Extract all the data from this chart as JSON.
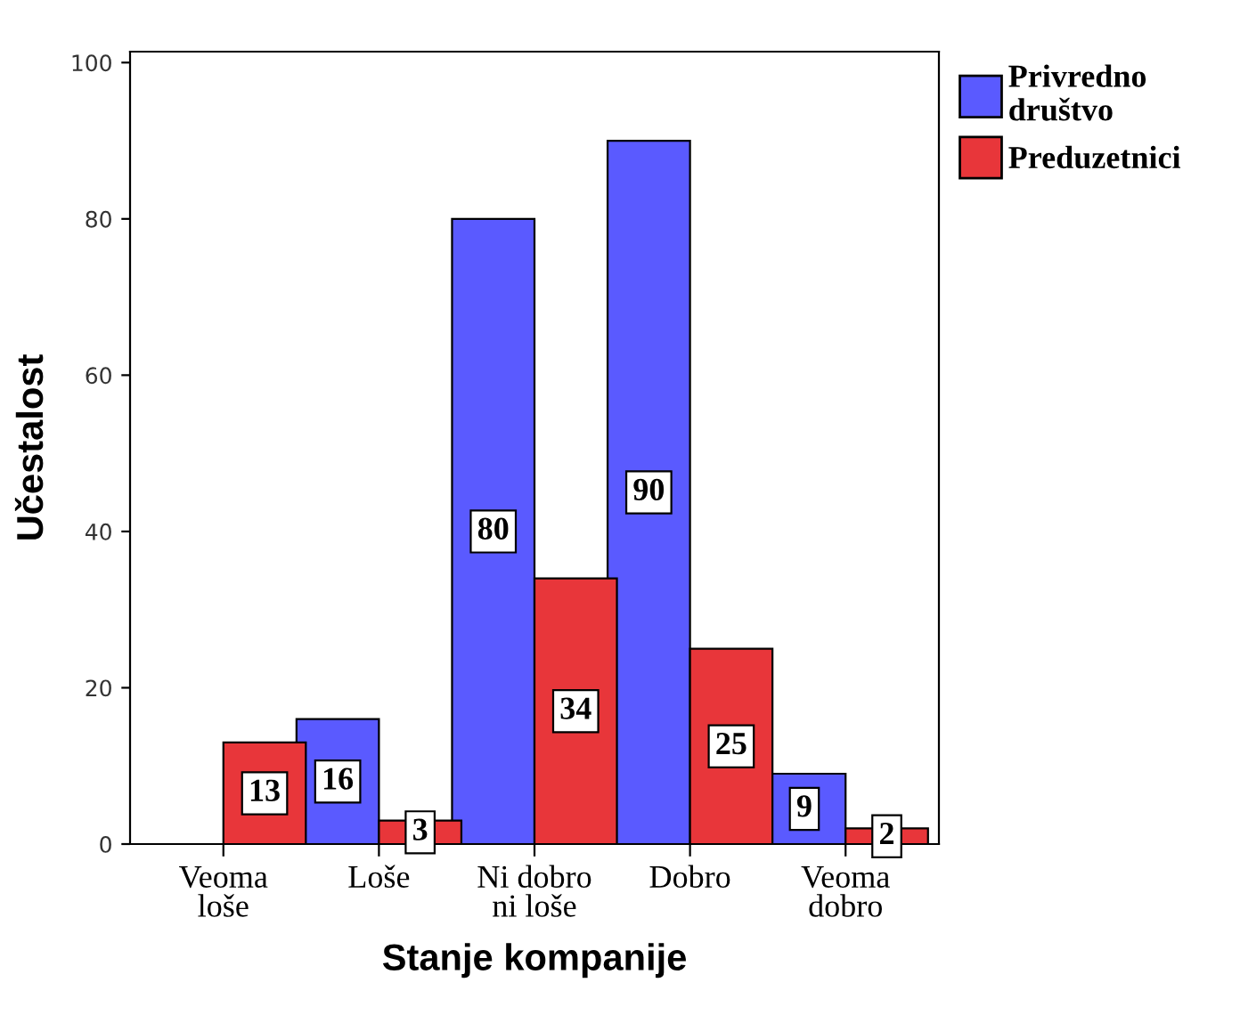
{
  "chart_data": {
    "type": "bar",
    "xlabel": "Stanje kompanije",
    "ylabel": "Učestalost",
    "categories": [
      "Veoma\nloše",
      "Loše",
      "Ni dobro\nni loše",
      "Dobro",
      "Veoma\ndobro"
    ],
    "series": [
      {
        "name": "Privredno\ndruštvo",
        "color": "#5a5aff",
        "values": [
          null,
          16,
          80,
          90,
          9
        ]
      },
      {
        "name": "Preduzetnici",
        "color": "#e8363a",
        "values": [
          13,
          3,
          34,
          25,
          2
        ]
      }
    ],
    "ylim": [
      0,
      101.4
    ],
    "yticks": [
      0,
      20,
      40,
      60,
      80,
      100
    ],
    "data_labels": true,
    "legend": "top right",
    "grid": false
  }
}
